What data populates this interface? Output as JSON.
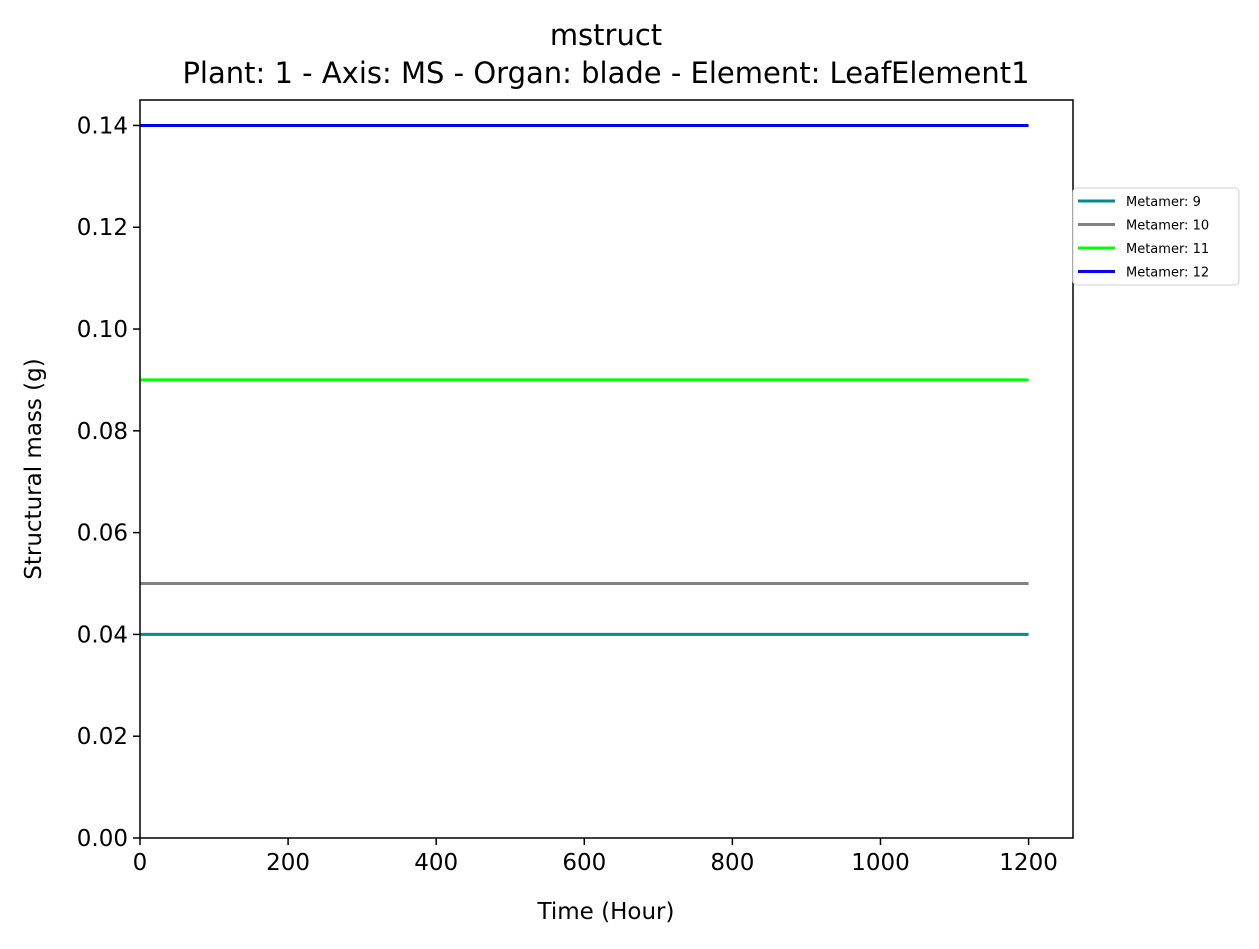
{
  "chart_data": {
    "type": "line",
    "title": "mstruct",
    "subtitle": "Plant: 1 - Axis: MS - Organ: blade - Element: LeafElement1",
    "xlabel": "Time (Hour)",
    "ylabel": "Structural mass (g)",
    "xlim": [
      0,
      1260
    ],
    "ylim": [
      0,
      0.145
    ],
    "xticks": [
      0,
      200,
      400,
      600,
      800,
      1000,
      1200
    ],
    "xtick_labels": [
      "0",
      "200",
      "400",
      "600",
      "800",
      "1000",
      "1200"
    ],
    "yticks": [
      0.0,
      0.02,
      0.04,
      0.06,
      0.08,
      0.1,
      0.12,
      0.14
    ],
    "ytick_labels": [
      "0.00",
      "0.02",
      "0.04",
      "0.06",
      "0.08",
      "0.10",
      "0.12",
      "0.14"
    ],
    "grid": false,
    "legend_position": "outside-top-right",
    "x": [
      0,
      1200
    ],
    "series": [
      {
        "name": "Metamer: 9",
        "color": "#008b8b",
        "values": [
          0.04,
          0.04
        ]
      },
      {
        "name": "Metamer: 10",
        "color": "#808080",
        "values": [
          0.05,
          0.05
        ]
      },
      {
        "name": "Metamer: 11",
        "color": "#00ff00",
        "values": [
          0.09,
          0.09
        ]
      },
      {
        "name": "Metamer: 12",
        "color": "#0000ff",
        "values": [
          0.14,
          0.14
        ]
      }
    ]
  }
}
